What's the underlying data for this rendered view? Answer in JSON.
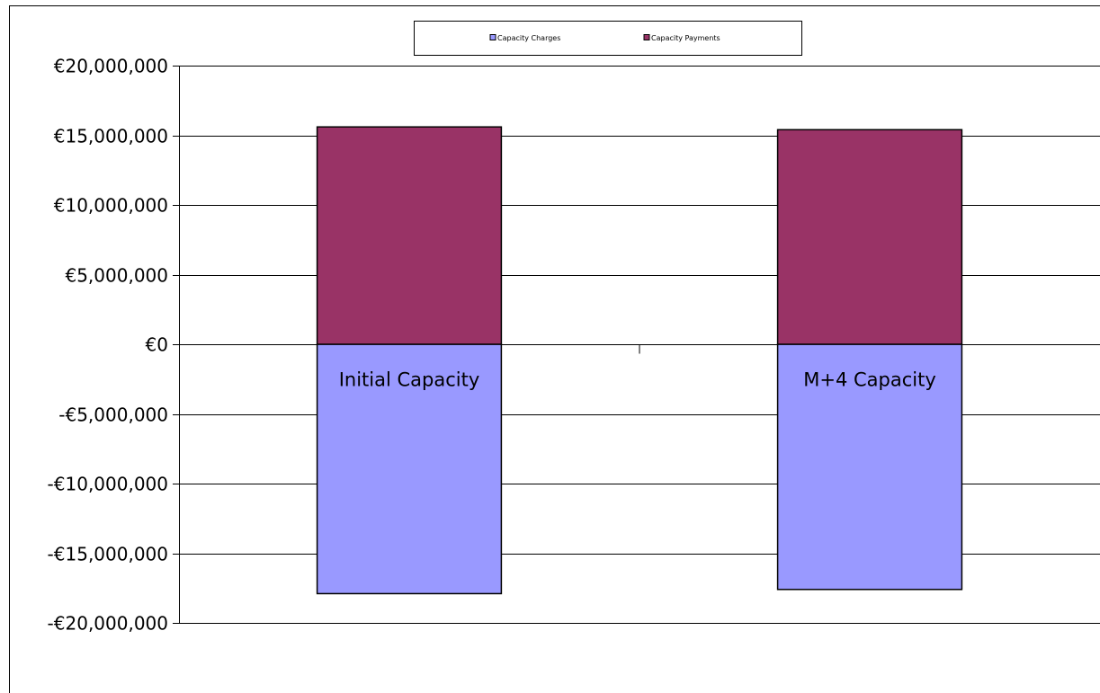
{
  "chart_data": {
    "type": "bar",
    "stacked": true,
    "categories": [
      "Initial Capacity",
      "M+4 Capacity"
    ],
    "series": [
      {
        "name": "Capacity Charges",
        "color": "#9999FF",
        "values": [
          -17900000,
          -17600000
        ]
      },
      {
        "name": "Capacity Payments",
        "color": "#993366",
        "values": [
          15600000,
          15400000
        ]
      }
    ],
    "ylim": [
      -20000000,
      20000000
    ],
    "yticks": [
      20000000,
      15000000,
      10000000,
      5000000,
      0,
      -5000000,
      -10000000,
      -15000000,
      -20000000
    ],
    "ytick_labels": [
      "€20,000,000",
      "€15,000,000",
      "€10,000,000",
      "€5,000,000",
      "€0",
      "-€5,000,000",
      "-€10,000,000",
      "-€15,000,000",
      "-€20,000,000"
    ],
    "grid": true,
    "legend_position": "top"
  }
}
